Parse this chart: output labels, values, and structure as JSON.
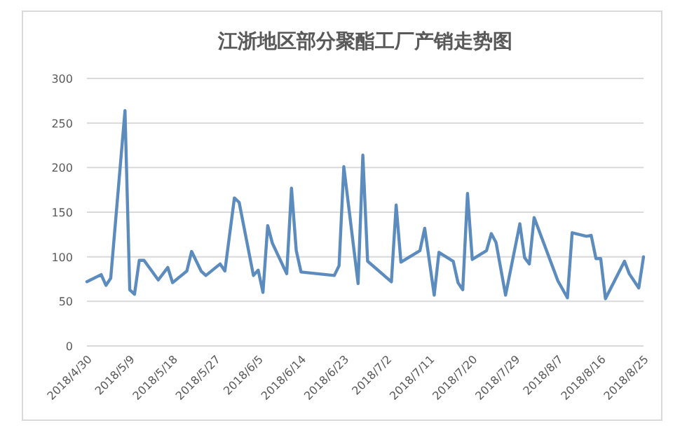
{
  "chart_data": {
    "type": "line",
    "title": "江浙地区部分聚酯工厂产销走势图",
    "color": "#5b8cbd",
    "grid": "y",
    "x": [
      "2018-04-30",
      "2018-05-03",
      "2018-05-04",
      "2018-05-05",
      "2018-05-08",
      "2018-05-09",
      "2018-05-10",
      "2018-05-11",
      "2018-05-12",
      "2018-05-15",
      "2018-05-17",
      "2018-05-18",
      "2018-05-21",
      "2018-05-22",
      "2018-05-24",
      "2018-05-25",
      "2018-05-28",
      "2018-05-29",
      "2018-05-31",
      "2018-06-01",
      "2018-06-04",
      "2018-06-05",
      "2018-06-06",
      "2018-06-07",
      "2018-06-08",
      "2018-06-11",
      "2018-06-12",
      "2018-06-13",
      "2018-06-14",
      "2018-06-21",
      "2018-06-22",
      "2018-06-23",
      "2018-06-26",
      "2018-06-27",
      "2018-06-28",
      "2018-07-03",
      "2018-07-04",
      "2018-07-05",
      "2018-07-09",
      "2018-07-10",
      "2018-07-12",
      "2018-07-13",
      "2018-07-16",
      "2018-07-17",
      "2018-07-18",
      "2018-07-19",
      "2018-07-20",
      "2018-07-23",
      "2018-07-24",
      "2018-07-25",
      "2018-07-27",
      "2018-07-30",
      "2018-07-31",
      "2018-08-01",
      "2018-08-02",
      "2018-08-07",
      "2018-08-09",
      "2018-08-10",
      "2018-08-13",
      "2018-08-14",
      "2018-08-15",
      "2018-08-16",
      "2018-08-17",
      "2018-08-21",
      "2018-08-22",
      "2018-08-24",
      "2018-08-25"
    ],
    "values": [
      72,
      80,
      68,
      76,
      264,
      63,
      58,
      96,
      96,
      74,
      88,
      71,
      84,
      106,
      84,
      79,
      92,
      84,
      166,
      161,
      79,
      85,
      60,
      135,
      115,
      81,
      177,
      107,
      83,
      79,
      90,
      201,
      70,
      214,
      95,
      72,
      158,
      94,
      107,
      132,
      57,
      105,
      95,
      71,
      63,
      171,
      97,
      107,
      126,
      116,
      57,
      137,
      99,
      92,
      144,
      73,
      54,
      127,
      123,
      124,
      98,
      98,
      53,
      95,
      81,
      65,
      100
    ],
    "xlim": [
      "2018-04-30",
      "2018-08-25"
    ],
    "xticks": [
      {
        "value": "2018-04-30",
        "label": "2018/4/30"
      },
      {
        "value": "2018-05-09",
        "label": "2018/5/9"
      },
      {
        "value": "2018-05-18",
        "label": "2018/5/18"
      },
      {
        "value": "2018-05-27",
        "label": "2018/5/27"
      },
      {
        "value": "2018-06-05",
        "label": "2018/6/5"
      },
      {
        "value": "2018-06-14",
        "label": "2018/6/14"
      },
      {
        "value": "2018-06-23",
        "label": "2018/6/23"
      },
      {
        "value": "2018-07-02",
        "label": "2018/7/2"
      },
      {
        "value": "2018-07-11",
        "label": "2018/7/11"
      },
      {
        "value": "2018-07-20",
        "label": "2018/7/20"
      },
      {
        "value": "2018-07-29",
        "label": "2018/7/29"
      },
      {
        "value": "2018-08-07",
        "label": "2018/8/7"
      },
      {
        "value": "2018-08-16",
        "label": "2018/8/16"
      },
      {
        "value": "2018-08-25",
        "label": "2018/8/25"
      }
    ],
    "ylim": [
      0,
      300
    ],
    "yticks": [
      0,
      50,
      100,
      150,
      200,
      250,
      300
    ]
  }
}
